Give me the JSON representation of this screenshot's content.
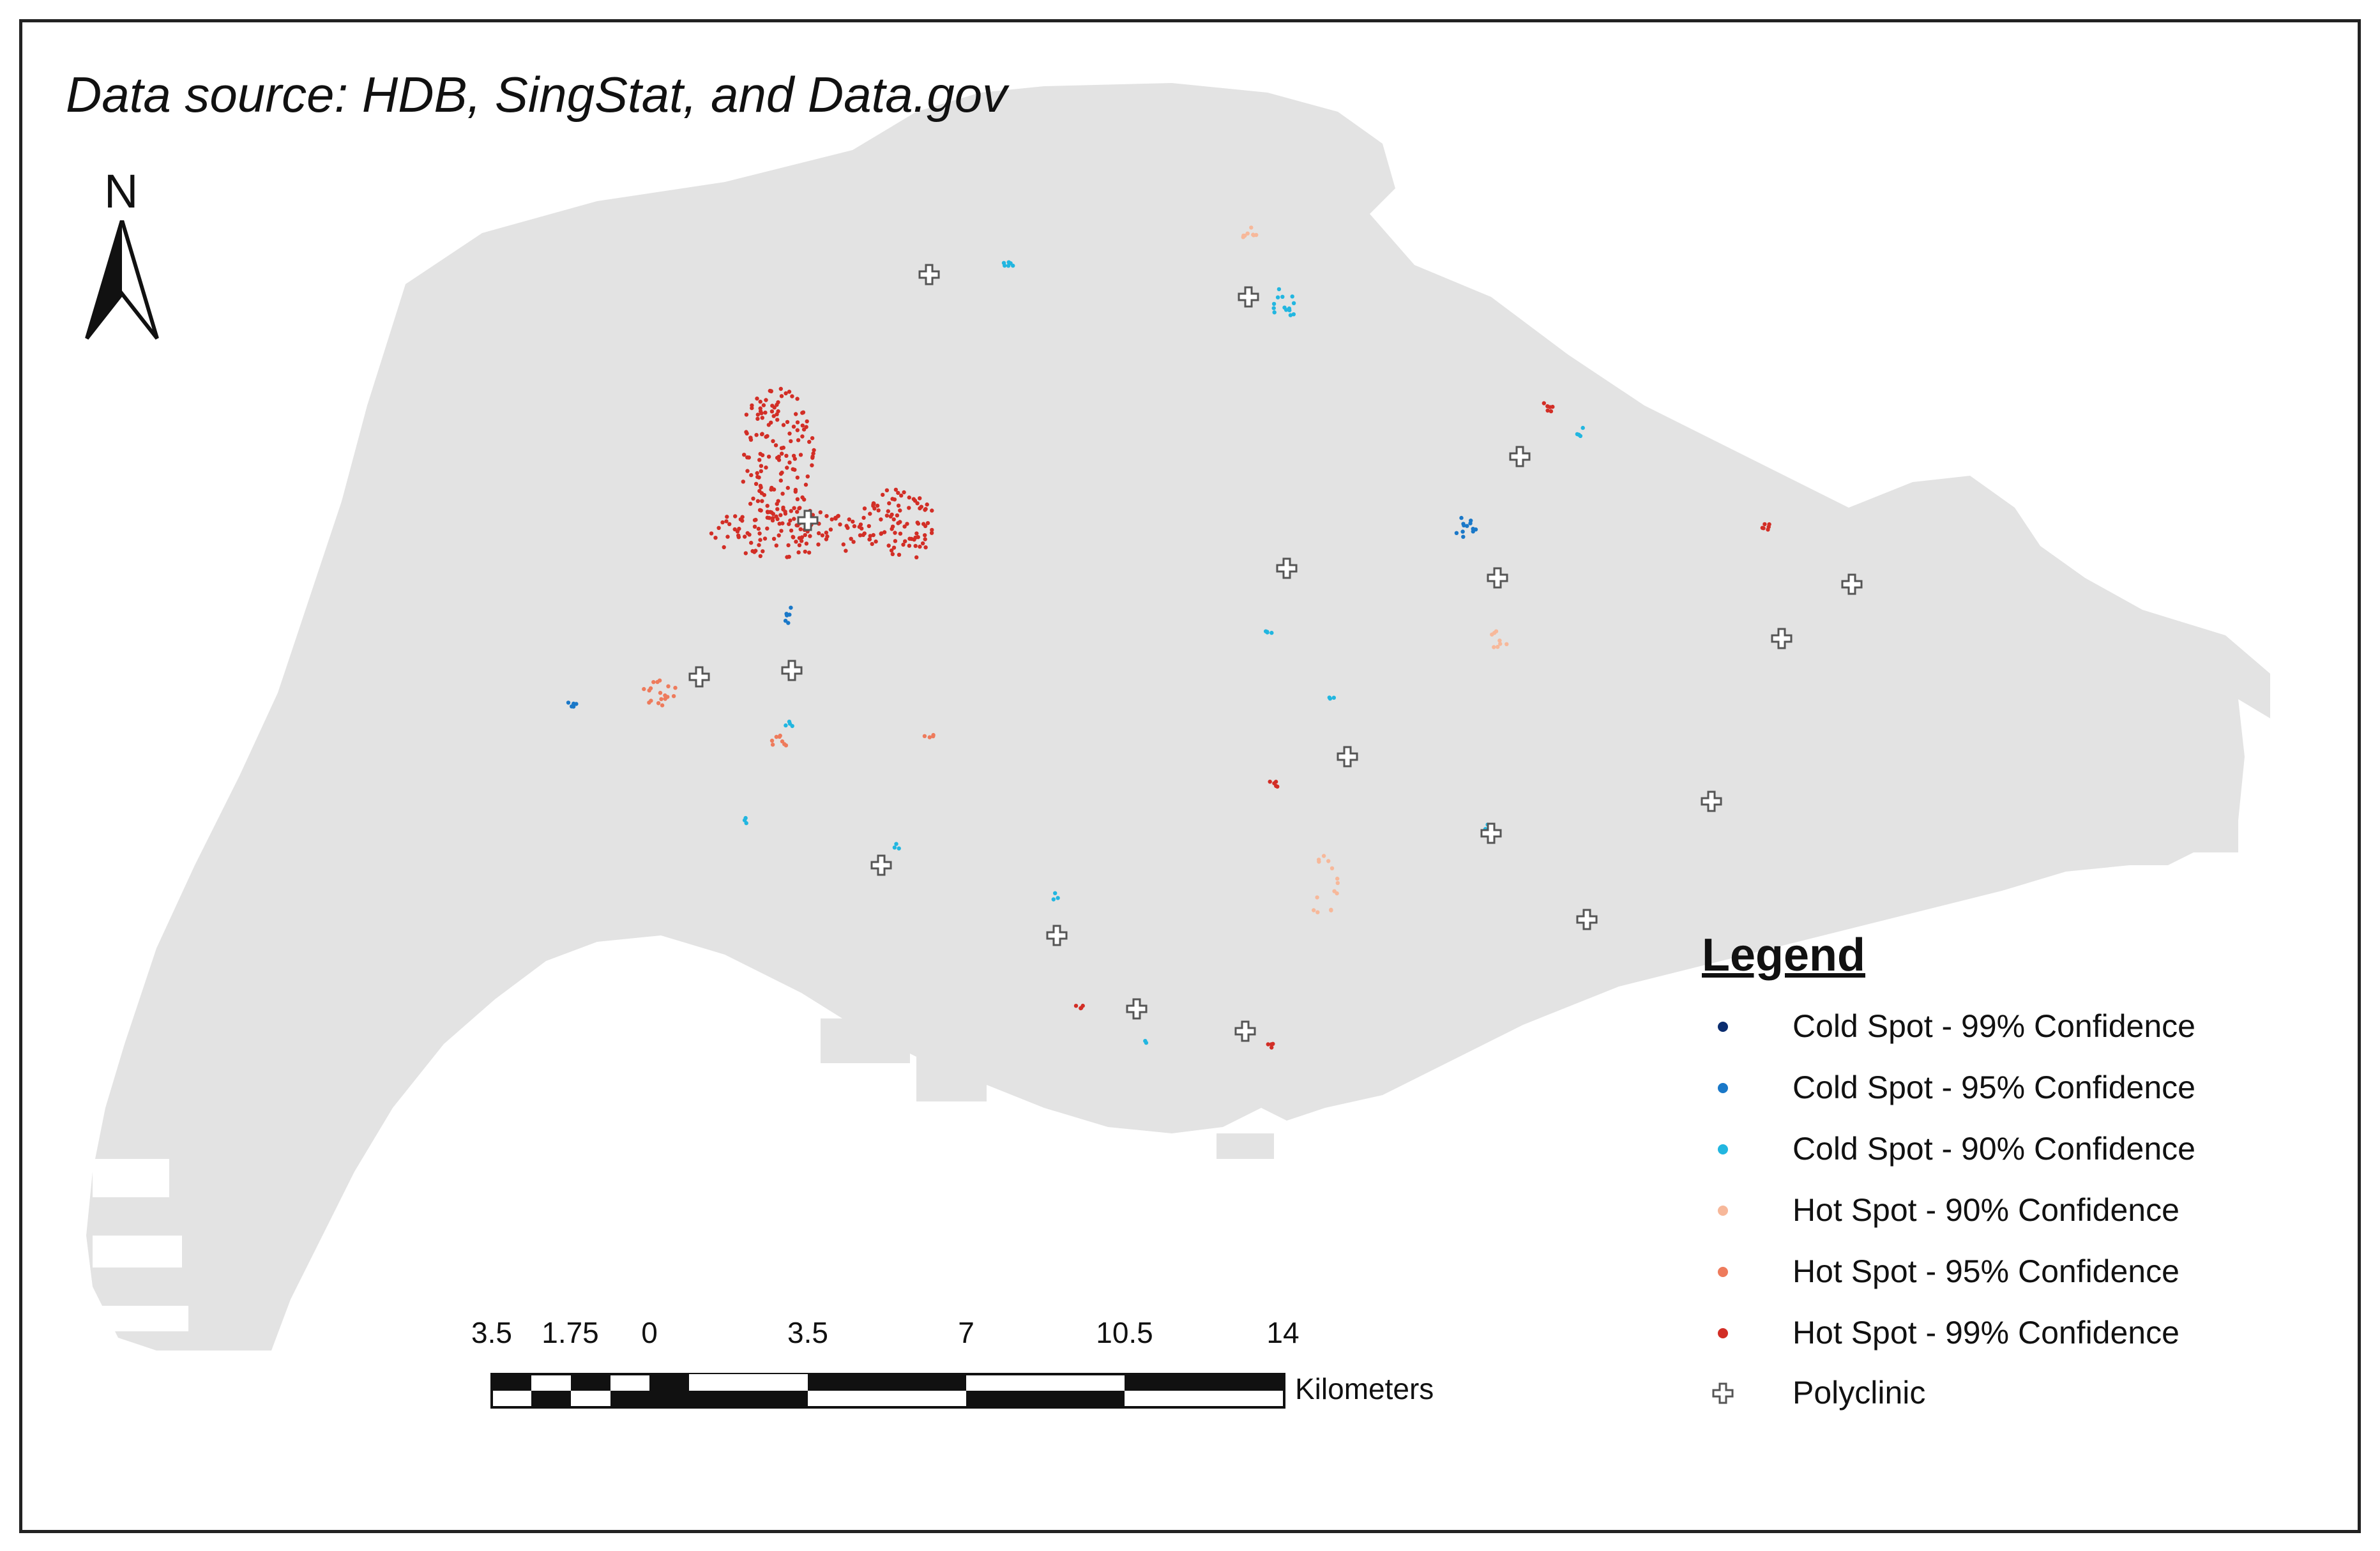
{
  "source_note": "Data source: HDB, SingStat, and Data.gov",
  "north_label": "N",
  "colors": {
    "land": "#e3e3e3",
    "cold_99": "#0b2d6f",
    "cold_95": "#1a78c8",
    "cold_90": "#22b6e0",
    "hot_90": "#f7b89a",
    "hot_95": "#ee7b5c",
    "hot_99": "#d22e26",
    "polyclinic": "#555555"
  },
  "legend": {
    "title": "Legend",
    "items": [
      {
        "label": "Cold Spot - 99% Confidence",
        "symbol": "dot",
        "color": "#0b2d6f"
      },
      {
        "label": "Cold Spot - 95% Confidence",
        "symbol": "dot",
        "color": "#1a78c8"
      },
      {
        "label": "Cold Spot - 90% Confidence",
        "symbol": "dot",
        "color": "#22b6e0"
      },
      {
        "label": "Hot Spot - 90% Confidence",
        "symbol": "dot",
        "color": "#f7b89a"
      },
      {
        "label": "Hot Spot - 95% Confidence",
        "symbol": "dot",
        "color": "#ee7b5c"
      },
      {
        "label": "Hot Spot - 99% Confidence",
        "symbol": "dot",
        "color": "#d22e26"
      },
      {
        "label": "Polyclinic",
        "symbol": "cross-icon",
        "color": "#555555"
      }
    ]
  },
  "scale_bar": {
    "tick_labels": [
      "3.5",
      "1.75",
      "0",
      "3.5",
      "7",
      "10.5",
      "14"
    ],
    "units": "Kilometers"
  }
}
